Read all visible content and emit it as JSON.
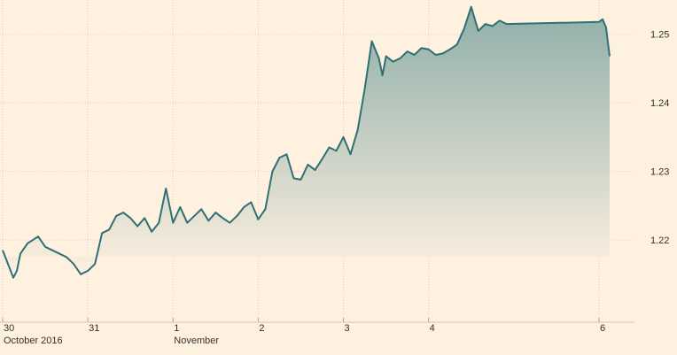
{
  "chart_data": {
    "type": "area",
    "title": "",
    "xlabel": "",
    "ylabel": "",
    "ylim": [
      1.208,
      1.255
    ],
    "y_ticks": [
      1.22,
      1.23,
      1.24,
      1.25
    ],
    "y_tick_labels": [
      "1.22",
      "1.23",
      "1.24",
      "1.25"
    ],
    "grid": true,
    "legend": "none",
    "x_domain": [
      "2016-10-30 00:00",
      "2016-11-06 10:00"
    ],
    "x_ticks": [
      {
        "at": "2016-10-30 00:00",
        "label": "30",
        "sub": "October 2016"
      },
      {
        "at": "2016-10-31 00:00",
        "label": "31",
        "sub": ""
      },
      {
        "at": "2016-11-01 00:00",
        "label": "1",
        "sub": "November"
      },
      {
        "at": "2016-11-02 00:00",
        "label": "2",
        "sub": ""
      },
      {
        "at": "2016-11-03 00:00",
        "label": "3",
        "sub": ""
      },
      {
        "at": "2016-11-04 00:00",
        "label": "4",
        "sub": ""
      },
      {
        "at": "2016-11-06 00:00",
        "label": "6",
        "sub": ""
      }
    ],
    "colors": {
      "background": "#fff1e0",
      "line": "#2e7075",
      "area_top": "#8eaea8",
      "area_bottom": "#fff1e0",
      "grid": "#d9cfc3",
      "axis_text": "#33302e"
    },
    "series": [
      {
        "name": "",
        "x": [
          "2016-10-30 00:00",
          "2016-10-30 03:00",
          "2016-10-30 04:00",
          "2016-10-30 05:00",
          "2016-10-30 07:00",
          "2016-10-30 10:00",
          "2016-10-30 12:00",
          "2016-10-30 14:00",
          "2016-10-30 16:00",
          "2016-10-30 18:00",
          "2016-10-30 20:00",
          "2016-10-30 22:00",
          "2016-10-31 00:00",
          "2016-10-31 02:00",
          "2016-10-31 04:00",
          "2016-10-31 06:00",
          "2016-10-31 08:00",
          "2016-10-31 10:00",
          "2016-10-31 12:00",
          "2016-10-31 14:00",
          "2016-10-31 16:00",
          "2016-10-31 18:00",
          "2016-10-31 20:00",
          "2016-10-31 22:00",
          "2016-11-01 00:00",
          "2016-11-01 02:00",
          "2016-11-01 04:00",
          "2016-11-01 06:00",
          "2016-11-01 08:00",
          "2016-11-01 10:00",
          "2016-11-01 12:00",
          "2016-11-01 14:00",
          "2016-11-01 16:00",
          "2016-11-01 18:00",
          "2016-11-01 20:00",
          "2016-11-01 22:00",
          "2016-11-02 00:00",
          "2016-11-02 02:00",
          "2016-11-02 04:00",
          "2016-11-02 06:00",
          "2016-11-02 08:00",
          "2016-11-02 10:00",
          "2016-11-02 12:00",
          "2016-11-02 14:00",
          "2016-11-02 16:00",
          "2016-11-02 18:00",
          "2016-11-02 20:00",
          "2016-11-02 22:00",
          "2016-11-03 00:00",
          "2016-11-03 02:00",
          "2016-11-03 04:00",
          "2016-11-03 06:00",
          "2016-11-03 08:00",
          "2016-11-03 10:00",
          "2016-11-03 11:00",
          "2016-11-03 12:00",
          "2016-11-03 14:00",
          "2016-11-03 16:00",
          "2016-11-03 18:00",
          "2016-11-03 20:00",
          "2016-11-03 22:00",
          "2016-11-04 00:00",
          "2016-11-04 02:00",
          "2016-11-04 04:00",
          "2016-11-04 06:00",
          "2016-11-04 08:00",
          "2016-11-04 10:00",
          "2016-11-04 12:00",
          "2016-11-04 14:00",
          "2016-11-04 16:00",
          "2016-11-04 18:00",
          "2016-11-04 20:00",
          "2016-11-04 22:00",
          "2016-11-06 00:00",
          "2016-11-06 01:00",
          "2016-11-06 02:00",
          "2016-11-06 03:00"
        ],
        "values": [
          1.2185,
          1.2145,
          1.2155,
          1.218,
          1.2195,
          1.2205,
          1.219,
          1.2185,
          1.218,
          1.2175,
          1.2165,
          1.215,
          1.2155,
          1.2165,
          1.221,
          1.2215,
          1.2235,
          1.224,
          1.2232,
          1.222,
          1.2232,
          1.2212,
          1.2225,
          1.2275,
          1.2225,
          1.2248,
          1.2225,
          1.2235,
          1.2245,
          1.2228,
          1.224,
          1.2232,
          1.2225,
          1.2235,
          1.2248,
          1.2255,
          1.223,
          1.2245,
          1.23,
          1.232,
          1.2325,
          1.229,
          1.2288,
          1.231,
          1.2302,
          1.2318,
          1.2335,
          1.233,
          1.235,
          1.2325,
          1.236,
          1.242,
          1.249,
          1.2465,
          1.244,
          1.2468,
          1.246,
          1.2465,
          1.2475,
          1.247,
          1.248,
          1.2478,
          1.247,
          1.2472,
          1.2478,
          1.2485,
          1.2508,
          1.254,
          1.2505,
          1.2515,
          1.2512,
          1.252,
          1.2515,
          1.2518,
          1.2522,
          1.251,
          1.2468
        ]
      }
    ]
  }
}
